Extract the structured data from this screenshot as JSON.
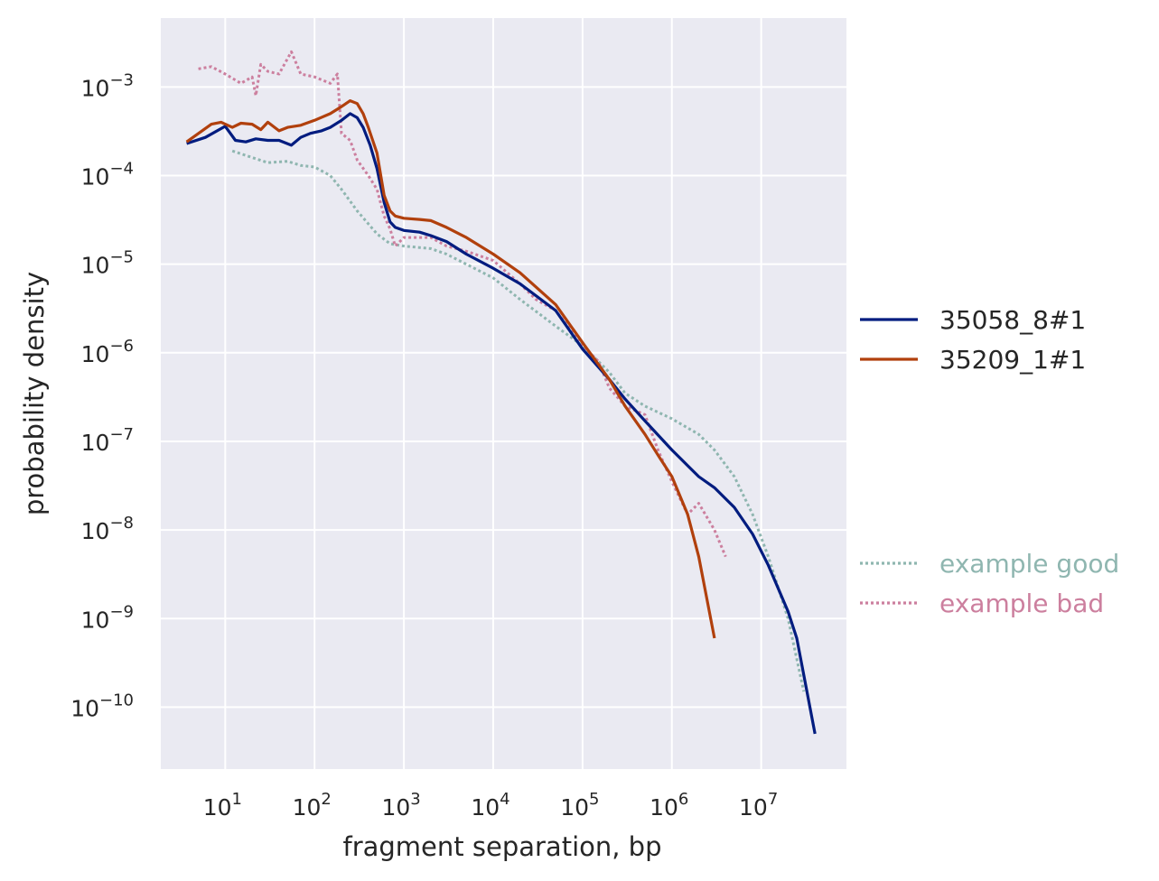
{
  "chart_data": {
    "type": "line",
    "xlabel": "fragment separation, bp",
    "ylabel": "probability density",
    "xscale": "log",
    "yscale": "log",
    "xlim": [
      1.9,
      90000000
    ],
    "ylim": [
      2e-11,
      0.006
    ],
    "grid": true,
    "legend_placement": "right",
    "x_ticks": [
      {
        "value": 10,
        "base": "10",
        "exp": "1"
      },
      {
        "value": 100,
        "base": "10",
        "exp": "2"
      },
      {
        "value": 1000,
        "base": "10",
        "exp": "3"
      },
      {
        "value": 10000,
        "base": "10",
        "exp": "4"
      },
      {
        "value": 100000,
        "base": "10",
        "exp": "5"
      },
      {
        "value": 1000000,
        "base": "10",
        "exp": "6"
      },
      {
        "value": 10000000,
        "base": "10",
        "exp": "7"
      }
    ],
    "y_ticks": [
      {
        "value": 0.001,
        "base": "10",
        "exp": "−3"
      },
      {
        "value": 0.0001,
        "base": "10",
        "exp": "−4"
      },
      {
        "value": 1e-05,
        "base": "10",
        "exp": "−5"
      },
      {
        "value": 1e-06,
        "base": "10",
        "exp": "−6"
      },
      {
        "value": 1e-07,
        "base": "10",
        "exp": "−7"
      },
      {
        "value": 1e-08,
        "base": "10",
        "exp": "−8"
      },
      {
        "value": 1e-09,
        "base": "10",
        "exp": "−9"
      },
      {
        "value": 1e-10,
        "base": "10",
        "exp": "−10"
      }
    ],
    "series": [
      {
        "name": "35058_8#1",
        "color": "#001c7f",
        "style": "solid",
        "points": [
          [
            3.7,
            0.00023
          ],
          [
            6,
            0.00027
          ],
          [
            10,
            0.00036
          ],
          [
            13,
            0.00025
          ],
          [
            17,
            0.00024
          ],
          [
            22,
            0.00026
          ],
          [
            30,
            0.00025
          ],
          [
            40,
            0.00025
          ],
          [
            55,
            0.00022
          ],
          [
            70,
            0.00027
          ],
          [
            90,
            0.0003
          ],
          [
            120,
            0.00032
          ],
          [
            150,
            0.00035
          ],
          [
            200,
            0.00042
          ],
          [
            250,
            0.0005
          ],
          [
            300,
            0.00045
          ],
          [
            350,
            0.00035
          ],
          [
            420,
            0.00022
          ],
          [
            500,
            0.00012
          ],
          [
            600,
            5e-05
          ],
          [
            700,
            3e-05
          ],
          [
            800,
            2.6e-05
          ],
          [
            1000,
            2.4e-05
          ],
          [
            1500,
            2.3e-05
          ],
          [
            2000,
            2.1e-05
          ],
          [
            3000,
            1.8e-05
          ],
          [
            5000,
            1.3e-05
          ],
          [
            10000,
            9e-06
          ],
          [
            20000,
            6e-06
          ],
          [
            50000,
            3e-06
          ],
          [
            100000,
            1.1e-06
          ],
          [
            200000,
            5e-07
          ],
          [
            300000,
            3e-07
          ],
          [
            500000,
            1.7e-07
          ],
          [
            1000000,
            8e-08
          ],
          [
            2000000,
            4e-08
          ],
          [
            3000000,
            3e-08
          ],
          [
            5000000,
            1.8e-08
          ],
          [
            8000000,
            9e-09
          ],
          [
            12000000,
            4e-09
          ],
          [
            20000000,
            1.2e-09
          ],
          [
            25000000,
            6e-10
          ],
          [
            40000000,
            5e-11
          ]
        ]
      },
      {
        "name": "35209_1#1",
        "color": "#b1400d",
        "style": "solid",
        "points": [
          [
            3.7,
            0.00024
          ],
          [
            7,
            0.00038
          ],
          [
            9,
            0.0004
          ],
          [
            12,
            0.00035
          ],
          [
            15,
            0.00039
          ],
          [
            20,
            0.00038
          ],
          [
            25,
            0.00033
          ],
          [
            30,
            0.0004
          ],
          [
            40,
            0.00032
          ],
          [
            50,
            0.00035
          ],
          [
            70,
            0.00037
          ],
          [
            100,
            0.00042
          ],
          [
            150,
            0.0005
          ],
          [
            200,
            0.0006
          ],
          [
            250,
            0.0007
          ],
          [
            300,
            0.00065
          ],
          [
            350,
            0.0005
          ],
          [
            400,
            0.00035
          ],
          [
            500,
            0.00018
          ],
          [
            600,
            6e-05
          ],
          [
            700,
            4e-05
          ],
          [
            800,
            3.5e-05
          ],
          [
            1000,
            3.3e-05
          ],
          [
            1500,
            3.2e-05
          ],
          [
            2000,
            3.1e-05
          ],
          [
            3000,
            2.6e-05
          ],
          [
            5000,
            2e-05
          ],
          [
            10000,
            1.3e-05
          ],
          [
            20000,
            8e-06
          ],
          [
            50000,
            3.5e-06
          ],
          [
            100000,
            1.3e-06
          ],
          [
            200000,
            5e-07
          ],
          [
            300000,
            2.5e-07
          ],
          [
            500000,
            1.2e-07
          ],
          [
            700000,
            7e-08
          ],
          [
            1000000,
            4e-08
          ],
          [
            1500000,
            1.5e-08
          ],
          [
            2000000,
            5e-09
          ],
          [
            3000000,
            6e-10
          ]
        ]
      },
      {
        "name": "example good",
        "color": "#8fb6b0",
        "style": "dotted",
        "points": [
          [
            12,
            0.00019
          ],
          [
            20,
            0.00016
          ],
          [
            30,
            0.00014
          ],
          [
            50,
            0.000145
          ],
          [
            70,
            0.00013
          ],
          [
            100,
            0.000125
          ],
          [
            150,
            0.0001
          ],
          [
            200,
            7e-05
          ],
          [
            300,
            4e-05
          ],
          [
            500,
            2.2e-05
          ],
          [
            700,
            1.7e-05
          ],
          [
            1000,
            1.6e-05
          ],
          [
            2000,
            1.5e-05
          ],
          [
            3000,
            1.3e-05
          ],
          [
            5000,
            1e-05
          ],
          [
            10000,
            7e-06
          ],
          [
            20000,
            4e-06
          ],
          [
            50000,
            2e-06
          ],
          [
            100000,
            1.2e-06
          ],
          [
            200000,
            6e-07
          ],
          [
            300000,
            3.5e-07
          ],
          [
            500000,
            2.5e-07
          ],
          [
            1000000,
            1.8e-07
          ],
          [
            2000000,
            1.2e-07
          ],
          [
            3000000,
            8e-08
          ],
          [
            5000000,
            4e-08
          ],
          [
            8000000,
            1.5e-08
          ],
          [
            12000000,
            5e-09
          ],
          [
            20000000,
            1e-09
          ],
          [
            30000000,
            1.5e-10
          ]
        ]
      },
      {
        "name": "example bad",
        "color": "#cc7f9e",
        "style": "dotted",
        "points": [
          [
            5,
            0.0016
          ],
          [
            7,
            0.0017
          ],
          [
            10,
            0.0014
          ],
          [
            15,
            0.0011
          ],
          [
            20,
            0.0013
          ],
          [
            22,
            0.0008
          ],
          [
            25,
            0.0018
          ],
          [
            30,
            0.0015
          ],
          [
            40,
            0.0014
          ],
          [
            55,
            0.0025
          ],
          [
            70,
            0.0014
          ],
          [
            100,
            0.0013
          ],
          [
            150,
            0.0011
          ],
          [
            180,
            0.0014
          ],
          [
            200,
            0.0003
          ],
          [
            250,
            0.00025
          ],
          [
            300,
            0.00015
          ],
          [
            400,
            0.0001
          ],
          [
            500,
            7e-05
          ],
          [
            600,
            3.5e-05
          ],
          [
            700,
            2.5e-05
          ],
          [
            800,
            1.6e-05
          ],
          [
            1000,
            2e-05
          ],
          [
            2000,
            2e-05
          ],
          [
            3000,
            1.6e-05
          ],
          [
            5000,
            1.4e-05
          ],
          [
            10000,
            1.1e-05
          ],
          [
            20000,
            6e-06
          ],
          [
            30000,
            4e-06
          ],
          [
            50000,
            3e-06
          ],
          [
            100000,
            1.2e-06
          ],
          [
            150000,
            8e-07
          ],
          [
            200000,
            4e-07
          ],
          [
            300000,
            2.5e-07
          ],
          [
            500000,
            2e-07
          ],
          [
            700000,
            8e-08
          ],
          [
            1000000,
            3.5e-08
          ],
          [
            1500000,
            1.5e-08
          ],
          [
            2000000,
            2e-08
          ],
          [
            3000000,
            1e-08
          ],
          [
            4000000,
            5e-09
          ]
        ]
      }
    ]
  }
}
